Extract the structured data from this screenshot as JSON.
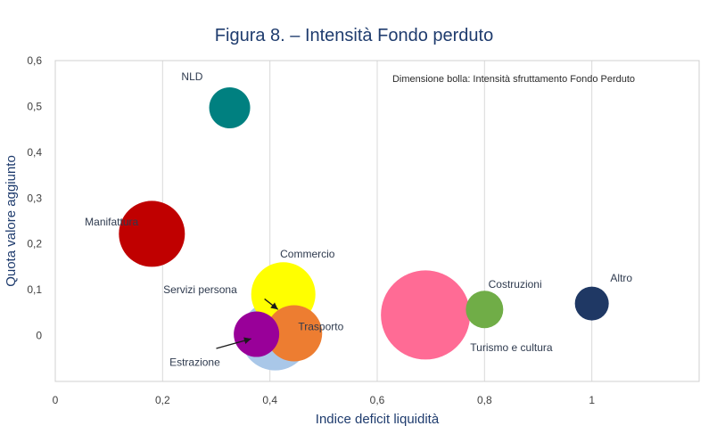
{
  "chart_data": {
    "type": "bubble",
    "title": "Figura 8. – Intensità Fondo perduto",
    "xlabel": "Indice deficit liquidità",
    "ylabel": "Quota valore aggiunto",
    "annotation": "Dimensione bolla: Intensità sfruttamento Fondo Perduto",
    "xlim": [
      0,
      1.2
    ],
    "ylim": [
      -0.1,
      0.6
    ],
    "x_ticks": [
      0,
      0.2,
      0.4,
      0.6,
      0.8,
      1
    ],
    "x_tick_labels": [
      "0",
      "0,2",
      "0,4",
      "0,6",
      "0,8",
      "1"
    ],
    "y_ticks": [
      0,
      0.1,
      0.2,
      0.3,
      0.4,
      0.5,
      0.6
    ],
    "y_tick_labels": [
      "0",
      "0,1",
      "0,2",
      "0,3",
      "0,4",
      "0,5",
      "0,6"
    ],
    "grid": "vertical",
    "series": [
      {
        "name": "Servizi persona",
        "x": 0.41,
        "y": 0.0,
        "size": 0.78,
        "color": "#a9c7e8"
      },
      {
        "name": "Turismo e cultura",
        "x": 0.69,
        "y": 0.045,
        "size": 1.0,
        "color": "#ff6b95"
      },
      {
        "name": "Commercio",
        "x": 0.425,
        "y": 0.09,
        "size": 0.72,
        "color": "#ffff00"
      },
      {
        "name": "Trasporto",
        "x": 0.445,
        "y": 0.005,
        "size": 0.63,
        "color": "#ed7d31"
      },
      {
        "name": "Manifattura",
        "x": 0.18,
        "y": 0.222,
        "size": 0.74,
        "color": "#c00000"
      },
      {
        "name": "Estrazione",
        "x": 0.375,
        "y": 0.003,
        "size": 0.51,
        "color": "#990099"
      },
      {
        "name": "NLD",
        "x": 0.325,
        "y": 0.497,
        "size": 0.46,
        "color": "#008080"
      },
      {
        "name": "Costruzioni",
        "x": 0.8,
        "y": 0.057,
        "size": 0.42,
        "color": "#70ad47"
      },
      {
        "name": "Altro",
        "x": 1.0,
        "y": 0.07,
        "size": 0.38,
        "color": "#1f3864"
      }
    ],
    "labels": [
      {
        "name": "NLD",
        "x": 0.255,
        "y": 0.565
      },
      {
        "name": "Manifattura",
        "x": 0.105,
        "y": 0.248
      },
      {
        "name": "Commercio",
        "x": 0.47,
        "y": 0.178
      },
      {
        "name": "Servizi persona",
        "x": 0.27,
        "y": 0.1
      },
      {
        "name": "Trasporto",
        "x": 0.495,
        "y": 0.02
      },
      {
        "name": "Estrazione",
        "x": 0.26,
        "y": -0.058
      },
      {
        "name": "Costruzioni",
        "x": 0.857,
        "y": 0.112
      },
      {
        "name": "Altro",
        "x": 1.055,
        "y": 0.126
      },
      {
        "name": "Turismo e cultura",
        "x": 0.85,
        "y": -0.026
      }
    ]
  }
}
